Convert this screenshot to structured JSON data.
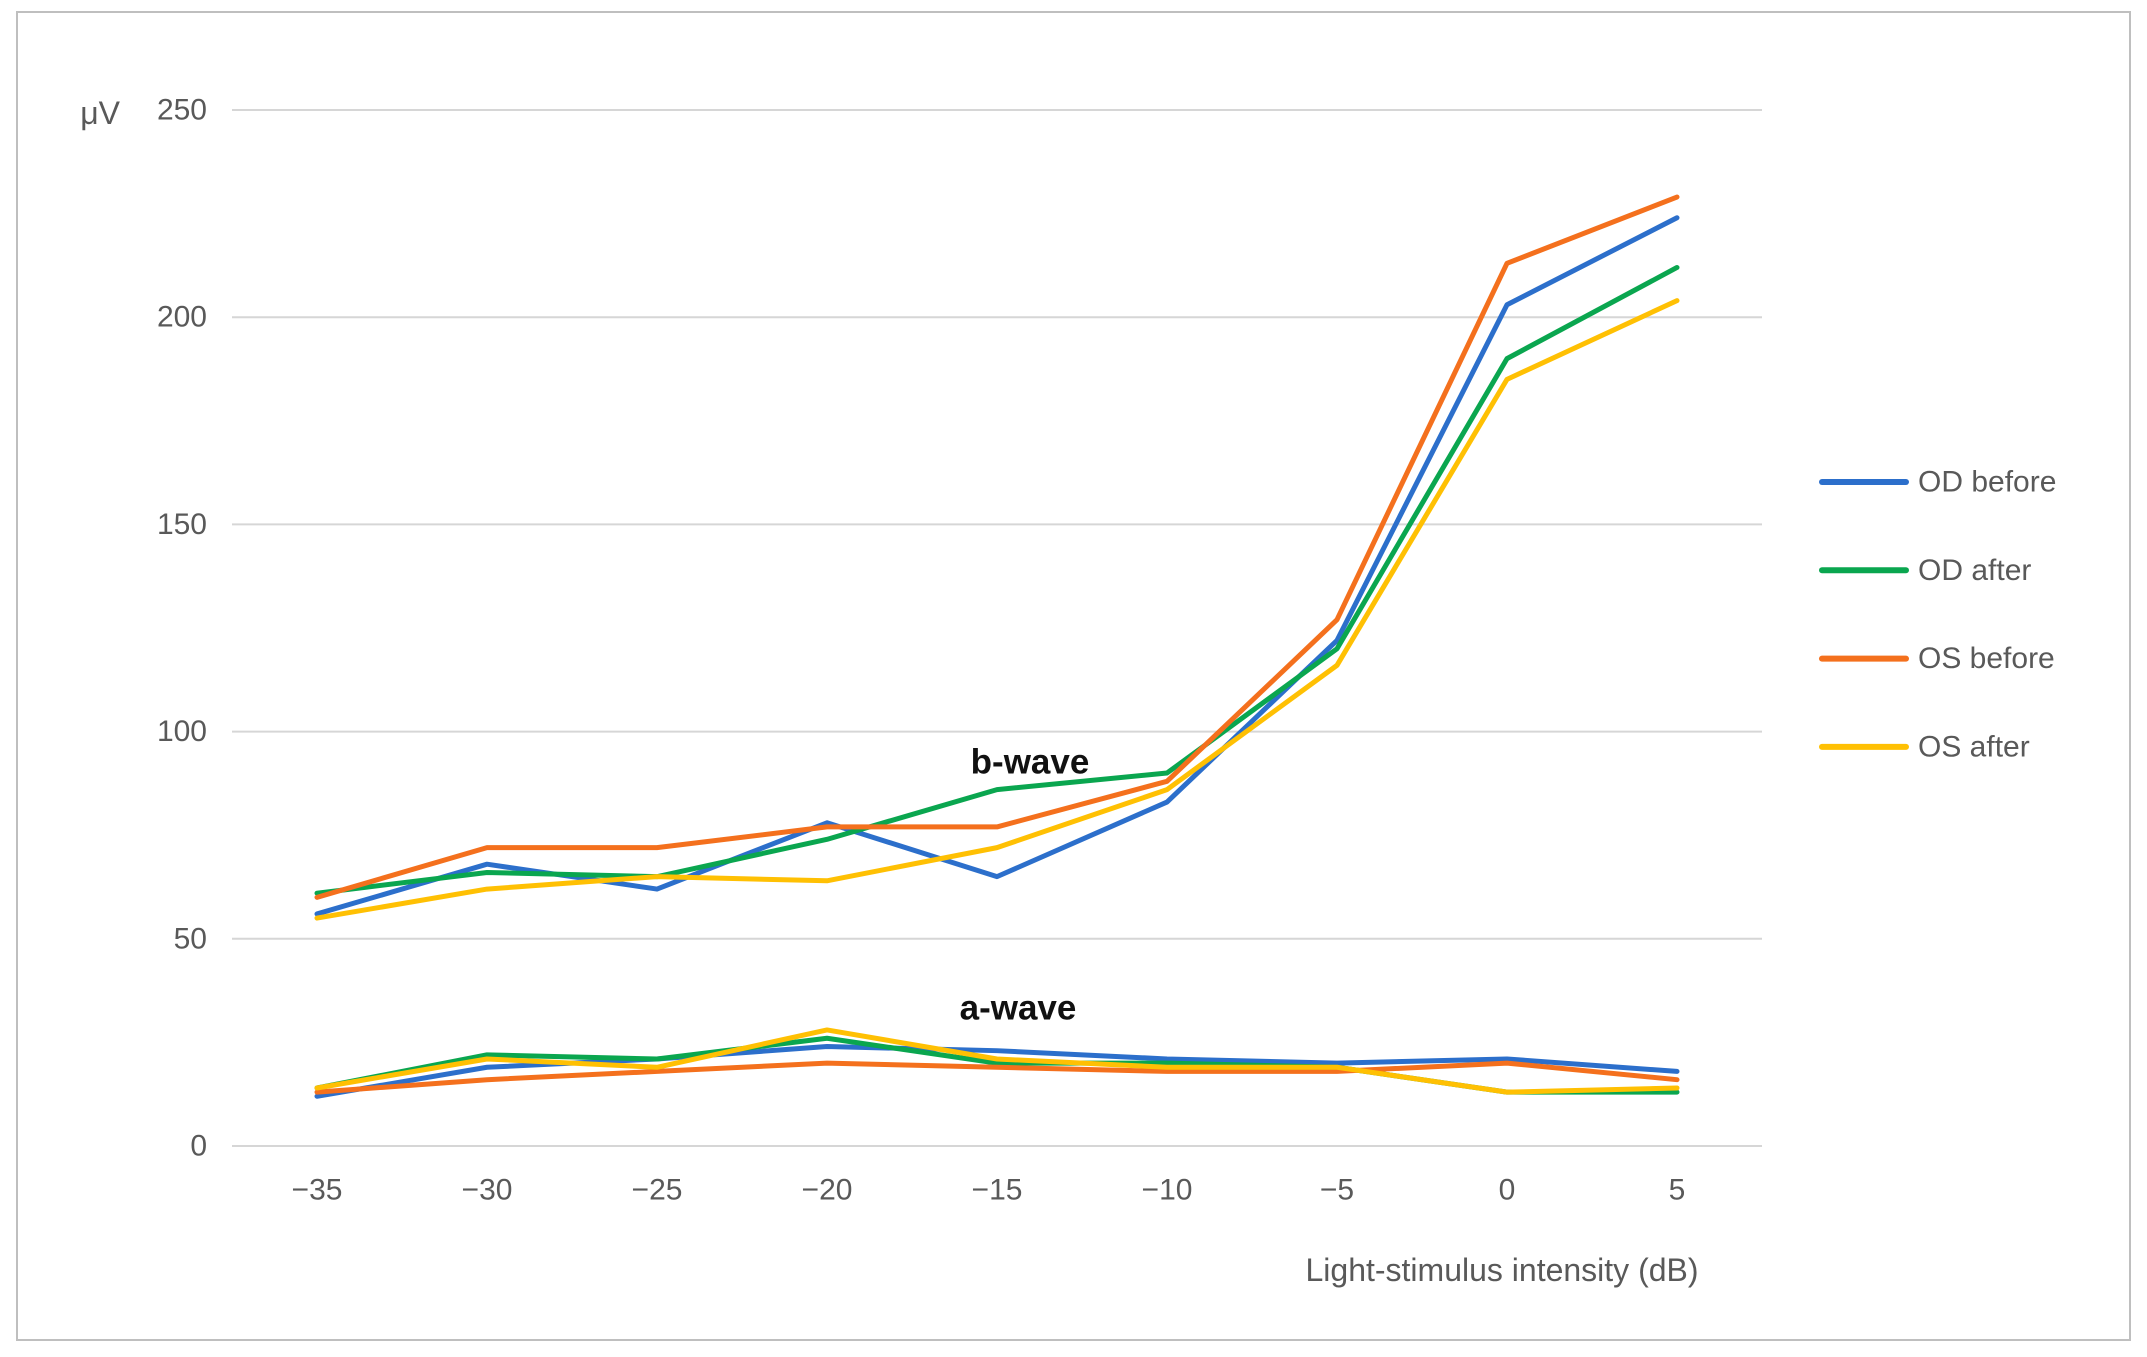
{
  "figure": {
    "y_axis_unit": "μV",
    "x_axis_title": "Light-stimulus intensity (dB)",
    "annotations": {
      "b_wave": "b-wave",
      "a_wave": "a-wave"
    }
  },
  "chart_data": {
    "type": "line",
    "title": "",
    "xlabel": "Light-stimulus intensity (dB)",
    "ylabel": "μV",
    "categories": [
      -35,
      -30,
      -25,
      -20,
      -15,
      -10,
      -5,
      0,
      5
    ],
    "ylim": [
      0,
      250
    ],
    "y_ticks": [
      0,
      50,
      100,
      150,
      200,
      250
    ],
    "grid": "horizontal",
    "legend_position": "right",
    "colors": {
      "od_before": "#2C6FCB",
      "od_after": "#0AA64F",
      "os_before": "#F4701D",
      "os_after": "#FFC003",
      "gridline": "#D6D6D6",
      "text_gray": "#595959",
      "border_gray": "#BFBFBF"
    },
    "series": [
      {
        "name": "OD before",
        "color": "#2C6FCB",
        "b_wave": [
          56,
          68,
          62,
          78,
          65,
          83,
          122,
          203,
          224
        ],
        "a_wave": [
          12,
          19,
          21,
          24,
          23,
          21,
          20,
          21,
          18
        ]
      },
      {
        "name": "OD after",
        "color": "#0AA64F",
        "b_wave": [
          61,
          66,
          65,
          74,
          86,
          90,
          120,
          190,
          212
        ],
        "a_wave": [
          14,
          22,
          21,
          26,
          20,
          20,
          19,
          13,
          13
        ]
      },
      {
        "name": "OS before",
        "color": "#F4701D",
        "b_wave": [
          60,
          72,
          72,
          77,
          77,
          88,
          127,
          213,
          229
        ],
        "a_wave": [
          13,
          16,
          18,
          20,
          19,
          18,
          18,
          20,
          16
        ]
      },
      {
        "name": "OS after",
        "color": "#FFC003",
        "b_wave": [
          55,
          62,
          65,
          64,
          72,
          86,
          116,
          185,
          204
        ],
        "a_wave": [
          14,
          21,
          19,
          28,
          21,
          19,
          19,
          13,
          14
        ]
      }
    ]
  }
}
